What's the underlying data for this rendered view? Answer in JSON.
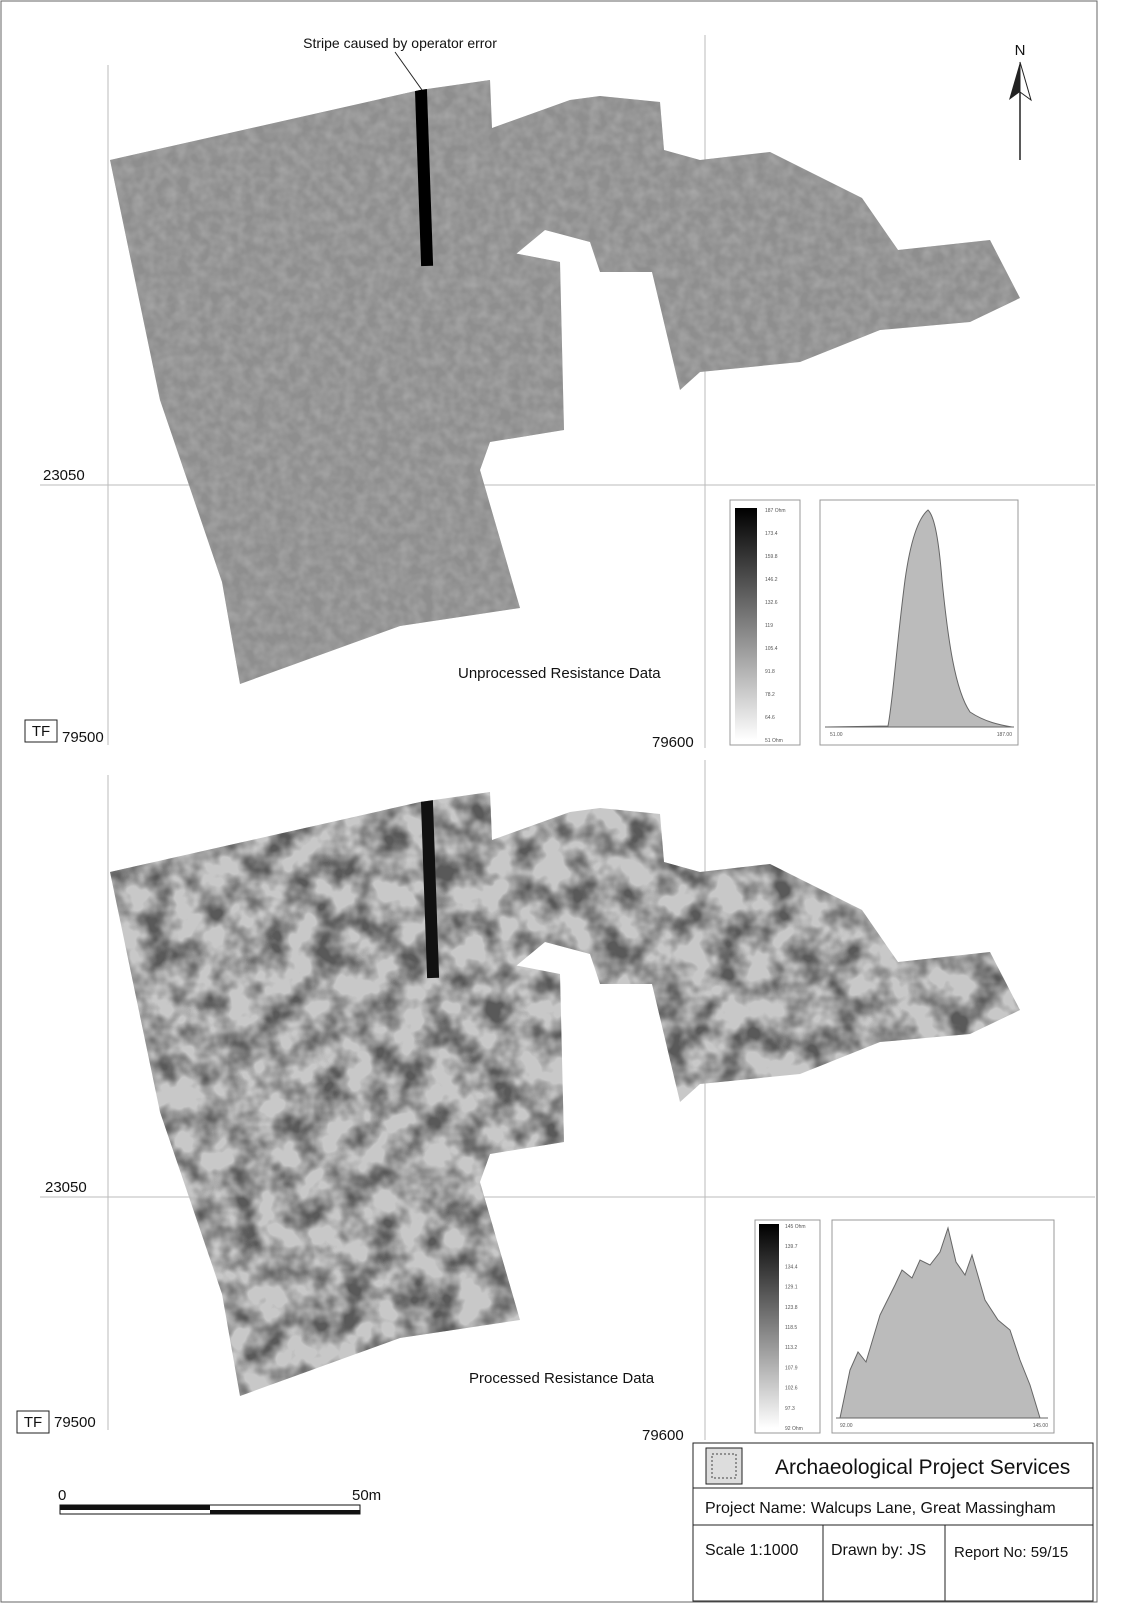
{
  "annotation": "Stripe caused by operator error",
  "north_arrow": "N",
  "panels": [
    {
      "caption": "Unprocessed Resistance Data",
      "northing": "23050",
      "grid_prefix": "TF",
      "easting_left": "79500",
      "easting_right": "79600",
      "legend_labels": [
        "187 Ohm",
        "173.4",
        "159.8",
        "146.2",
        "132.6",
        "119",
        "105.4",
        "91.8",
        "78.2",
        "64.6",
        "51 Ohm"
      ],
      "histogram_min": "51.00",
      "histogram_max": "187.00"
    },
    {
      "caption": "Processed Resistance Data",
      "northing": "23050",
      "grid_prefix": "TF",
      "easting_left": "79500",
      "easting_right": "79600",
      "legend_labels": [
        "145 Ohm",
        "139.7",
        "134.4",
        "129.1",
        "123.8",
        "118.5",
        "113.2",
        "107.9",
        "102.6",
        "97.3",
        "92 Ohm"
      ],
      "histogram_min": "92.00",
      "histogram_max": "145.00"
    }
  ],
  "scale_bar": {
    "start": "0",
    "end": "50m"
  },
  "title_block": {
    "organisation": "Archaeological Project Services",
    "project": "Project Name: Walcups Lane, Great Massingham",
    "scale": "Scale  1:1000",
    "drawn_by": "Drawn by: JS",
    "report_no": "Report No: 59/15"
  }
}
